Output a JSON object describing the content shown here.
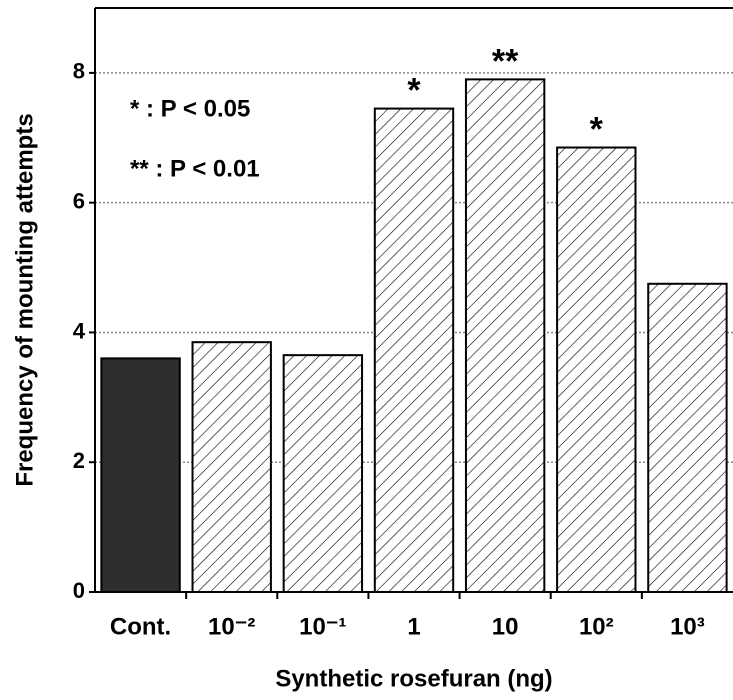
{
  "chart_data": {
    "type": "bar",
    "categories": [
      "Cont.",
      "10⁻²",
      "10⁻¹",
      "1",
      "10",
      "10²",
      "10³"
    ],
    "values": [
      3.6,
      3.85,
      3.65,
      7.45,
      7.9,
      6.85,
      4.75
    ],
    "hatched": [
      false,
      true,
      true,
      true,
      true,
      true,
      true
    ],
    "color": "#2e2e2e",
    "significance": [
      null,
      null,
      null,
      "*",
      "**",
      "*",
      null
    ],
    "legend_notes": [
      "* : P < 0.05",
      "** : P < 0.01"
    ],
    "x_label": "Synthetic rosefuran (ng)",
    "y_label": "Frequency of mounting attempts",
    "ylim": [
      0,
      9
    ],
    "yticks": [
      0,
      2,
      4,
      6,
      8
    ],
    "grid": true
  }
}
